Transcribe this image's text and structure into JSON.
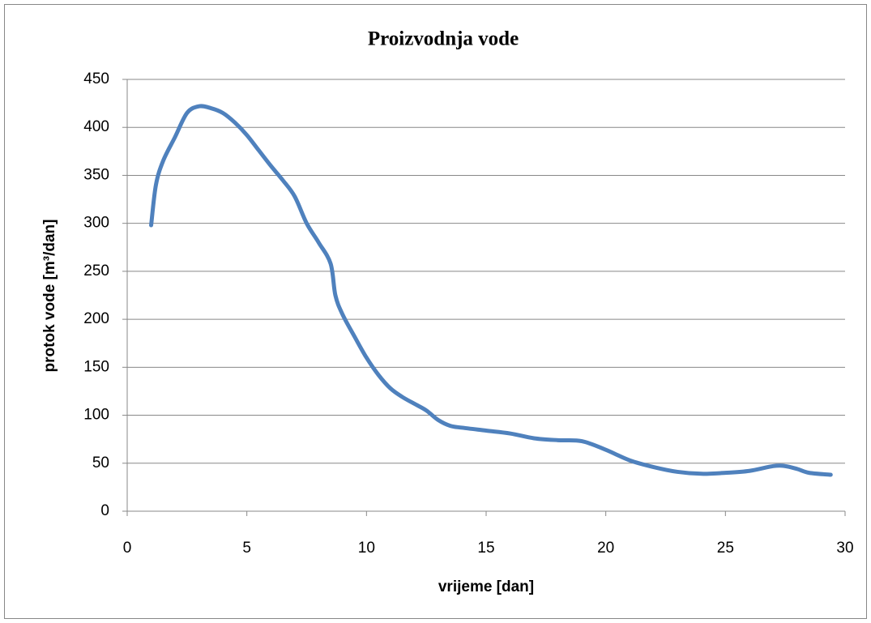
{
  "chart_data": {
    "type": "line",
    "title": "Proizvodnja vode",
    "x_label": "vrijeme [dan]",
    "y_label": "protok vode [m³/dan]",
    "x": [
      1,
      1.2,
      1.5,
      2,
      2.5,
      3,
      3.5,
      4,
      4.5,
      5,
      5.5,
      6,
      6.5,
      7,
      7.5,
      8,
      8.5,
      8.7,
      9,
      9.5,
      10,
      10.5,
      11,
      11.5,
      12,
      12.5,
      13,
      13.5,
      14,
      15,
      16,
      17,
      18,
      19,
      20,
      21,
      22,
      23,
      24,
      25,
      26,
      27,
      27.5,
      28,
      28.5,
      29.4
    ],
    "series": [
      {
        "name": "protok",
        "color": "#4f81bd",
        "values": [
          298,
          340,
          365,
          390,
          415,
          422,
          420,
          415,
          405,
          392,
          376,
          360,
          345,
          328,
          300,
          280,
          258,
          225,
          205,
          182,
          160,
          142,
          128,
          119,
          112,
          105,
          95,
          89,
          87,
          84,
          81,
          76,
          74,
          73,
          64,
          53,
          46,
          41,
          39,
          40,
          42,
          47,
          47,
          44,
          40,
          38
        ]
      }
    ],
    "xlim": [
      0,
      30
    ],
    "xticks": [
      0,
      5,
      10,
      15,
      20,
      25,
      30
    ],
    "ylim": [
      0,
      450
    ],
    "yticks": [
      0,
      50,
      100,
      150,
      200,
      250,
      300,
      350,
      400,
      450
    ],
    "grid": true,
    "legend": false
  }
}
